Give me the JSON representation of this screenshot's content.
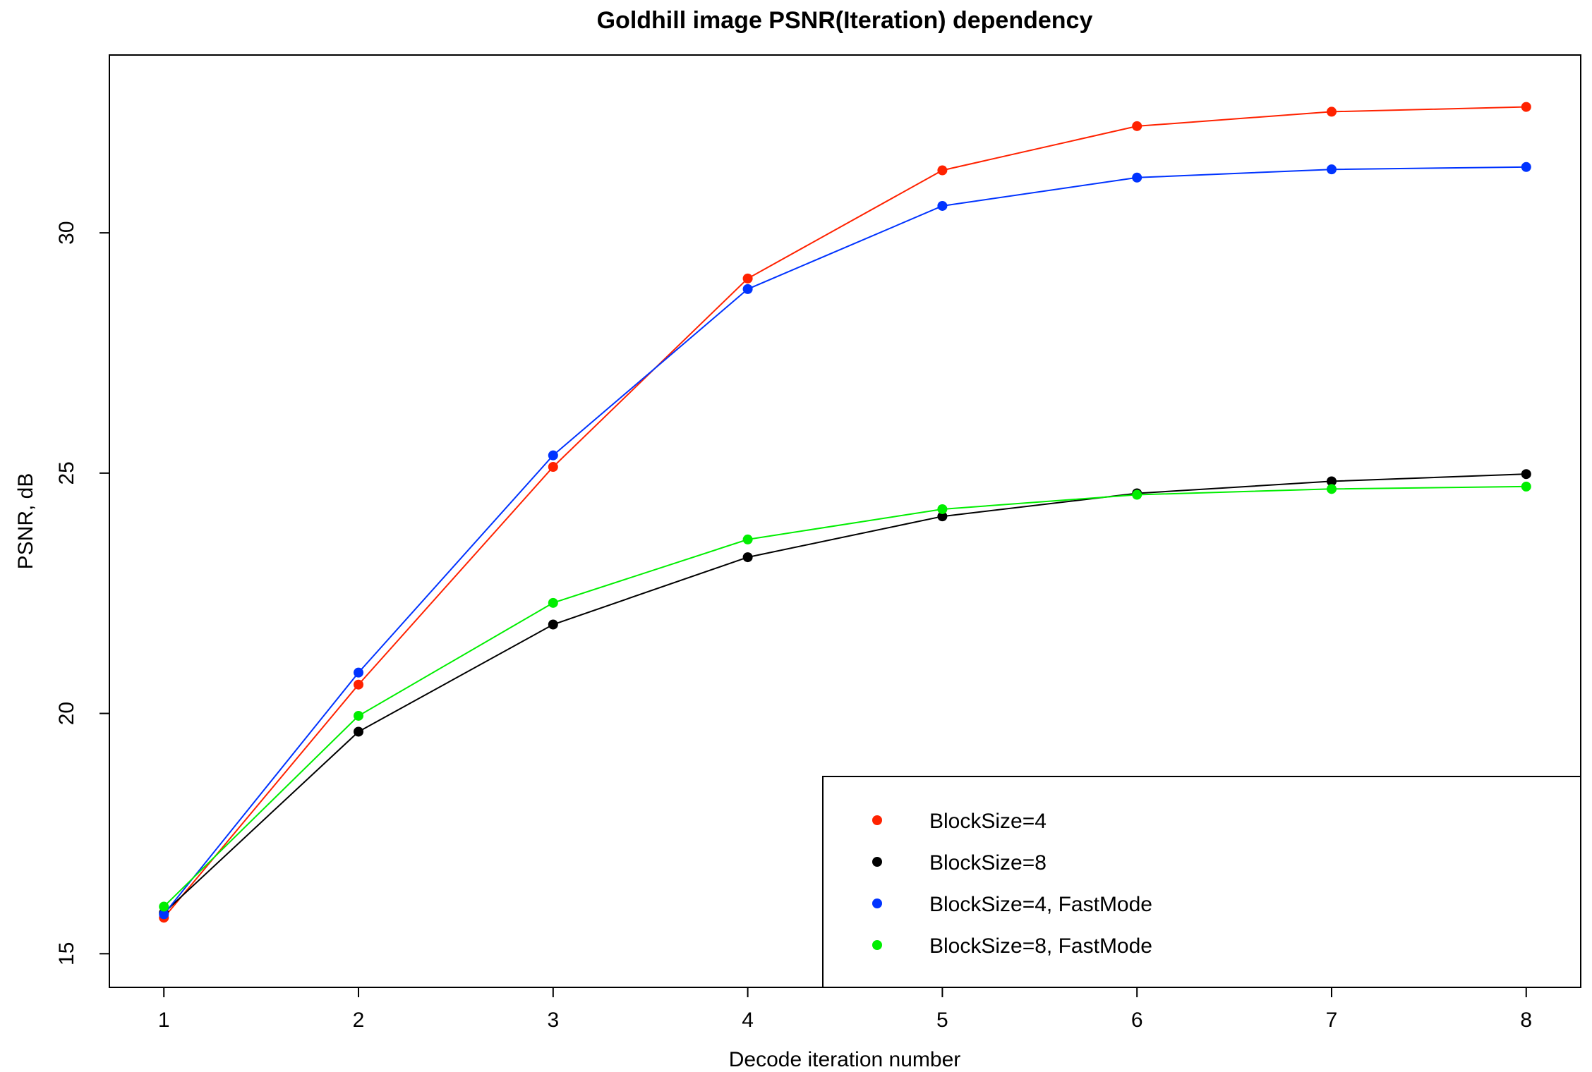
{
  "chart_data": {
    "type": "line",
    "title": "Goldhill image PSNR(Iteration) dependency",
    "xlabel": "Decode iteration number",
    "ylabel": "PSNR, dB",
    "x": [
      1,
      2,
      3,
      4,
      5,
      6,
      7,
      8
    ],
    "xlim": [
      0.72,
      8.28
    ],
    "ylim": [
      14.3,
      33.7
    ],
    "xticks": [
      1,
      2,
      3,
      4,
      5,
      6,
      7,
      8
    ],
    "yticks": [
      15,
      20,
      25,
      30
    ],
    "grid": false,
    "legend_position": "bottom-right",
    "series": [
      {
        "name": "BlockSize=4",
        "color": "#ff2200",
        "values": [
          15.75,
          20.6,
          25.13,
          29.05,
          31.3,
          32.22,
          32.52,
          32.62
        ]
      },
      {
        "name": "BlockSize=8",
        "color": "#000000",
        "values": [
          15.85,
          19.62,
          21.85,
          23.25,
          24.1,
          24.58,
          24.83,
          24.98
        ]
      },
      {
        "name": "BlockSize=4, FastMode",
        "color": "#0033ff",
        "values": [
          15.82,
          20.85,
          25.37,
          28.83,
          30.56,
          31.15,
          31.32,
          31.37
        ]
      },
      {
        "name": "BlockSize=8, FastMode",
        "color": "#00ee00",
        "values": [
          15.98,
          19.95,
          22.3,
          23.62,
          24.25,
          24.55,
          24.67,
          24.72
        ]
      }
    ]
  }
}
